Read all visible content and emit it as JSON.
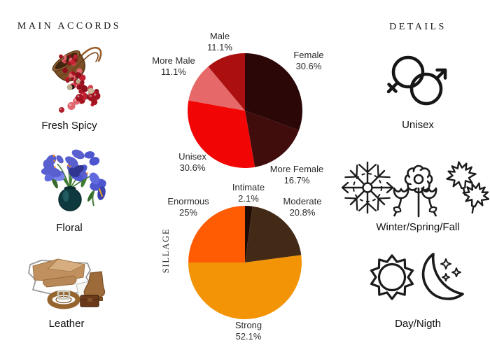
{
  "accords": {
    "title": "MAIN ACCORDS",
    "items": [
      {
        "label": "Fresh Spicy",
        "icon": "berries-basket"
      },
      {
        "label": "Floral",
        "icon": "iris-bouquet"
      },
      {
        "label": "Leather",
        "icon": "leather-collage"
      }
    ]
  },
  "details": {
    "title": "DETAILS",
    "items": [
      {
        "label": "Unisex",
        "icon": "gender-symbols"
      },
      {
        "label": "Winter/Spring/Fall",
        "icon": "season-symbols"
      },
      {
        "label": "Day/Nigth",
        "icon": "day-night-symbols"
      }
    ]
  },
  "chart_data": [
    {
      "type": "pie",
      "name": "gender-audience",
      "title": "",
      "legend": false,
      "start_angle_deg": 0,
      "direction": "clockwise",
      "slices": [
        {
          "label": "Female",
          "pct": "30.6%",
          "value": 30.6,
          "color": "#2b0708"
        },
        {
          "label": "More Female",
          "pct": "16.7%",
          "value": 16.7,
          "color": "#410c0c"
        },
        {
          "label": "Unisex",
          "pct": "30.6%",
          "value": 30.6,
          "color": "#f10505"
        },
        {
          "label": "More Male",
          "pct": "11.1%",
          "value": 11.1,
          "color": "#e66868"
        },
        {
          "label": "Male",
          "pct": "11.1%",
          "value": 11.1,
          "color": "#ab0f0f"
        }
      ]
    },
    {
      "type": "pie",
      "name": "sillage",
      "title": "",
      "ylabel": "SILLAGE",
      "legend": false,
      "start_angle_deg": 0,
      "direction": "clockwise",
      "slices": [
        {
          "label": "Intimate",
          "pct": "2.1%",
          "value": 2.1,
          "color": "#200a04"
        },
        {
          "label": "Moderate",
          "pct": "20.8%",
          "value": 20.8,
          "color": "#432a16"
        },
        {
          "label": "Strong",
          "pct": "52.1%",
          "value": 52.1,
          "color": "#f39306"
        },
        {
          "label": "Enormous",
          "pct": "25%",
          "value": 25.0,
          "color": "#ff5c04"
        }
      ]
    }
  ]
}
